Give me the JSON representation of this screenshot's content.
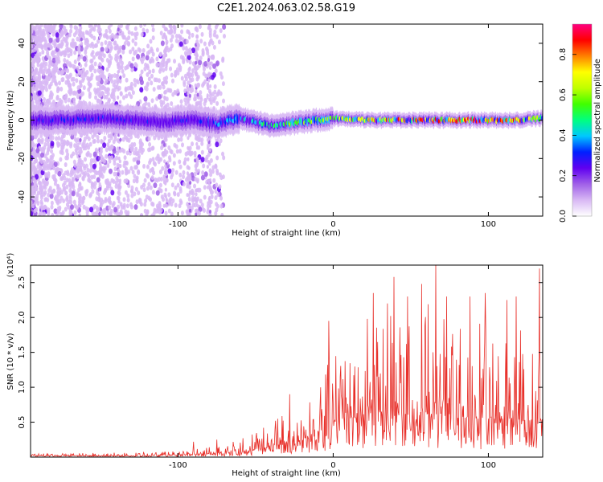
{
  "figure_title": "C2E1.2024.063.02.58.G19",
  "chart_data": [
    {
      "type": "heatmap",
      "xlabel": "Height of straight line (km)",
      "ylabel": "Frequency (Hz)",
      "xlim": [
        -195,
        135
      ],
      "ylim": [
        -50,
        50
      ],
      "x_ticks": [
        -100,
        0,
        100
      ],
      "x_tick_labels": [
        "-100",
        "0",
        "100"
      ],
      "y_ticks": [
        -40,
        -20,
        0,
        20,
        40
      ],
      "y_tick_labels": [
        "-40",
        "-20",
        "0",
        "20",
        "40"
      ],
      "grid": false,
      "colorbar": {
        "label": "Normalized spectral amplitude",
        "range": [
          0,
          0.95
        ],
        "ticks": [
          0,
          0.2,
          0.4,
          0.6,
          0.8
        ],
        "tick_labels": [
          "0.0",
          "0.2",
          "0.4",
          "0.6",
          "0.8"
        ],
        "colors": [
          "#ffffff",
          "#d8b8f4",
          "#a060e8",
          "#6000f0",
          "#0020ff",
          "#00c8ff",
          "#00ff80",
          "#40ff00",
          "#c0ff00",
          "#ffff00",
          "#ff8000",
          "#ff0000",
          "#ff0080"
        ]
      },
      "ridge": {
        "x": [
          -195,
          -170,
          -150,
          -130,
          -110,
          -90,
          -75,
          -60,
          -50,
          -40,
          -30,
          -20,
          -10,
          0,
          20,
          40,
          60,
          80,
          100,
          120,
          135
        ],
        "y": [
          0,
          0,
          1,
          0,
          -1,
          0,
          -2,
          1,
          -1,
          -3,
          -2,
          -1,
          0,
          1,
          0,
          0,
          0,
          0,
          0,
          0,
          1
        ],
        "peak_amplitude": [
          0.3,
          0.35,
          0.3,
          0.3,
          0.3,
          0.3,
          0.4,
          0.45,
          0.5,
          0.55,
          0.6,
          0.62,
          0.65,
          0.7,
          0.8,
          0.85,
          0.92,
          0.92,
          0.9,
          0.88,
          0.6
        ]
      }
    },
    {
      "type": "line",
      "xlabel": "Height of straight line (km)",
      "ylabel": "SNR (10 * v/v)",
      "y_scale_label": "(x10⁴)",
      "xlim": [
        -195,
        135
      ],
      "ylim": [
        0,
        2.75
      ],
      "x_ticks": [
        -100,
        0,
        100
      ],
      "x_tick_labels": [
        "-100",
        "0",
        "100"
      ],
      "y_ticks": [
        0.5,
        1.0,
        1.5,
        2.0,
        2.5
      ],
      "y_tick_labels": [
        "0.5",
        "1.0",
        "1.5",
        "2.0",
        "2.5"
      ],
      "grid": false,
      "series": [
        {
          "color": "#e8302a",
          "envelope_x": [
            -195,
            -150,
            -120,
            -100,
            -90,
            -80,
            -70,
            -60,
            -50,
            -40,
            -30,
            -20,
            -10,
            0,
            10,
            20,
            30,
            40,
            50,
            60,
            70,
            80,
            90,
            100,
            110,
            120,
            130,
            135
          ],
          "envelope_y": [
            0.06,
            0.07,
            0.08,
            0.1,
            0.15,
            0.2,
            0.25,
            0.3,
            0.42,
            0.55,
            0.85,
            0.75,
            1.1,
            1.9,
            1.6,
            2.0,
            2.2,
            2.5,
            2.3,
            2.6,
            2.7,
            2.3,
            2.3,
            2.4,
            2.2,
            2.3,
            2.1,
            2.7
          ],
          "baseline_y": [
            0.02,
            0.02,
            0.02,
            0.03,
            0.04,
            0.05,
            0.06,
            0.08,
            0.1,
            0.15,
            0.2,
            0.25,
            0.35,
            0.5,
            0.55,
            0.6,
            0.65,
            0.65,
            0.6,
            0.6,
            0.6,
            0.55,
            0.55,
            0.55,
            0.55,
            0.5,
            0.5,
            0.5
          ],
          "peaks": [
            {
              "x": -90,
              "y": 0.22
            },
            {
              "x": -75,
              "y": 0.25
            },
            {
              "x": -58,
              "y": 0.27
            },
            {
              "x": -45,
              "y": 0.42
            },
            {
              "x": -37,
              "y": 0.52
            },
            {
              "x": -28,
              "y": 0.9
            },
            {
              "x": -8,
              "y": 1.0
            },
            {
              "x": -3,
              "y": 1.95
            },
            {
              "x": 22,
              "y": 1.98
            },
            {
              "x": 26,
              "y": 2.35
            },
            {
              "x": 35,
              "y": 2.2
            },
            {
              "x": 39,
              "y": 2.58
            },
            {
              "x": 48,
              "y": 2.3
            },
            {
              "x": 57,
              "y": 2.48
            },
            {
              "x": 66,
              "y": 2.75
            },
            {
              "x": 73,
              "y": 2.3
            },
            {
              "x": 88,
              "y": 2.3
            },
            {
              "x": 98,
              "y": 2.35
            },
            {
              "x": 112,
              "y": 2.25
            },
            {
              "x": 118,
              "y": 2.3
            },
            {
              "x": 133,
              "y": 2.7
            }
          ]
        }
      ]
    }
  ]
}
